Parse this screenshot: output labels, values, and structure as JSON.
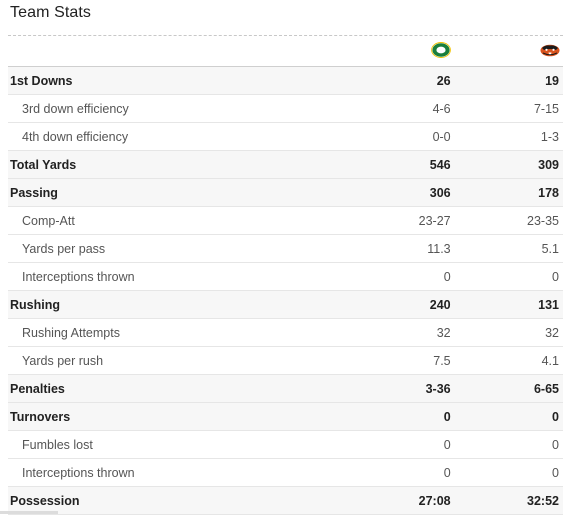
{
  "header": {
    "title": "Team Stats"
  },
  "teams": {
    "home": {
      "logo_icon": "oregon-ducks-o-logo-icon",
      "color": "#1a7f3c"
    },
    "away": {
      "logo_icon": "oregon-state-beaver-logo-icon",
      "color": "#d9531e"
    }
  },
  "rows": [
    {
      "label": "1st Downs",
      "home": "26",
      "away": "19",
      "type": "major"
    },
    {
      "label": "3rd down efficiency",
      "home": "4-6",
      "away": "7-15",
      "type": "sub"
    },
    {
      "label": "4th down efficiency",
      "home": "0-0",
      "away": "1-3",
      "type": "sub"
    },
    {
      "label": "Total Yards",
      "home": "546",
      "away": "309",
      "type": "major"
    },
    {
      "label": "Passing",
      "home": "306",
      "away": "178",
      "type": "major"
    },
    {
      "label": "Comp-Att",
      "home": "23-27",
      "away": "23-35",
      "type": "sub"
    },
    {
      "label": "Yards per pass",
      "home": "11.3",
      "away": "5.1",
      "type": "sub"
    },
    {
      "label": "Interceptions thrown",
      "home": "0",
      "away": "0",
      "type": "sub"
    },
    {
      "label": "Rushing",
      "home": "240",
      "away": "131",
      "type": "major"
    },
    {
      "label": "Rushing Attempts",
      "home": "32",
      "away": "32",
      "type": "sub"
    },
    {
      "label": "Yards per rush",
      "home": "7.5",
      "away": "4.1",
      "type": "sub"
    },
    {
      "label": "Penalties",
      "home": "3-36",
      "away": "6-65",
      "type": "major"
    },
    {
      "label": "Turnovers",
      "home": "0",
      "away": "0",
      "type": "major"
    },
    {
      "label": "Fumbles lost",
      "home": "0",
      "away": "0",
      "type": "sub"
    },
    {
      "label": "Interceptions thrown",
      "home": "0",
      "away": "0",
      "type": "sub"
    },
    {
      "label": "Possession",
      "home": "27:08",
      "away": "32:52",
      "type": "major"
    }
  ]
}
